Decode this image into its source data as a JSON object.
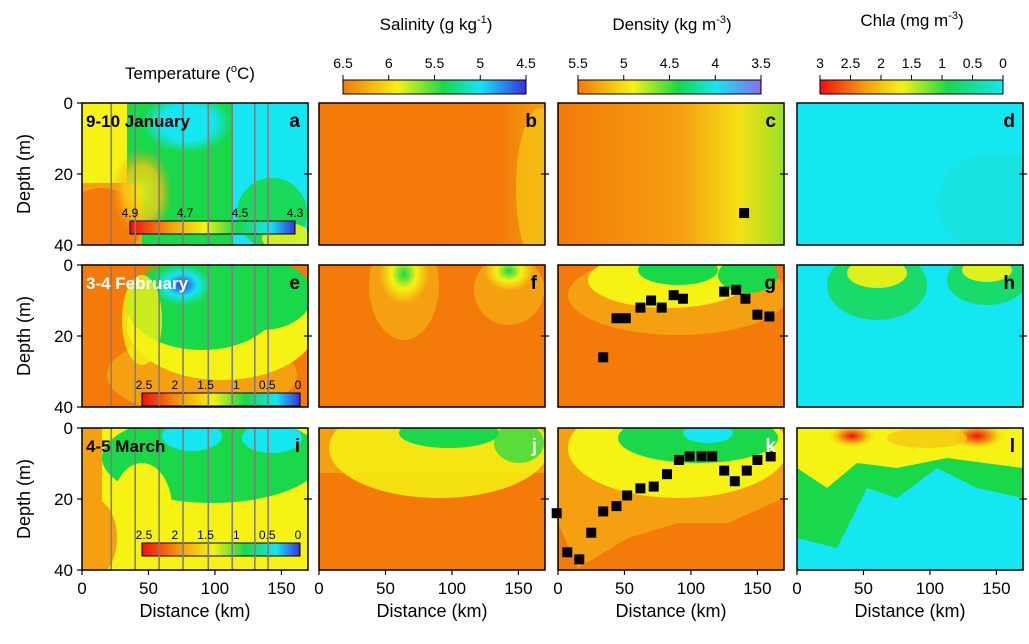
{
  "figure": {
    "columns": [
      {
        "title": "Temperature (",
        "sup": "o",
        "title_end": "C)"
      },
      {
        "title": "Salinity (g kg",
        "sup": "-1",
        "title_end": ")"
      },
      {
        "title": "Density (kg m",
        "sup": "-3",
        "title_end": ")"
      },
      {
        "title": "Chl",
        "italic": "a",
        "title_end": " (mg m",
        "sup": "-3",
        "title_end2": ")"
      }
    ],
    "ylabel": "Depth (m)",
    "xlabel": "Distance (km)",
    "xticks": [
      "0",
      "50",
      "100",
      "150"
    ],
    "yticks": [
      "0",
      "20",
      "40"
    ],
    "colorbars": {
      "temperature_jan": [
        "4.9",
        "4.7",
        "4.5",
        "4.3"
      ],
      "temperature_febmar": [
        "2.5",
        "2",
        "1.5",
        "1",
        "0.5",
        "0"
      ],
      "salinity": [
        "6.5",
        "6",
        "5.5",
        "5",
        "4.5"
      ],
      "density": [
        "5.5",
        "5",
        "4.5",
        "4",
        "3.5"
      ],
      "chl": [
        "3",
        "2.5",
        "2",
        "1.5",
        "1",
        "0.5",
        "0"
      ]
    },
    "rows": [
      {
        "date": "9-10 January",
        "letters": [
          "a",
          "b",
          "c",
          "d"
        ]
      },
      {
        "date": "3-4 February",
        "letters": [
          "e",
          "f",
          "g",
          "h"
        ]
      },
      {
        "date": "4-5 March",
        "letters": [
          "i",
          "j",
          "k",
          "l"
        ]
      }
    ],
    "colors": {
      "orange": "#f47a0a",
      "yellow": "#f5f214",
      "green": "#19d84a",
      "cyan": "#14e6f2",
      "blue": "#3a2fe0",
      "red": "#f20f0f"
    }
  },
  "chart_data": {
    "type": "heatmap",
    "xlabel": "Distance (km)",
    "ylabel": "Depth (m)",
    "xlim": [
      0,
      170
    ],
    "ylim": [
      40,
      0
    ],
    "station_lines_km": [
      22,
      40,
      58,
      76,
      95,
      113,
      130,
      140
    ],
    "mixed_layer_depth_m": {
      "jan": [
        {
          "x": 140,
          "y": 31
        }
      ],
      "feb": [
        {
          "x": 34,
          "y": 26
        },
        {
          "x": 44,
          "y": 15
        },
        {
          "x": 51,
          "y": 15
        },
        {
          "x": 62,
          "y": 12
        },
        {
          "x": 70,
          "y": 10
        },
        {
          "x": 78,
          "y": 12
        },
        {
          "x": 87,
          "y": 8.5
        },
        {
          "x": 94,
          "y": 9.5
        },
        {
          "x": 125,
          "y": 7.5
        },
        {
          "x": 134,
          "y": 7
        },
        {
          "x": 141,
          "y": 9.5
        },
        {
          "x": 150,
          "y": 14
        },
        {
          "x": 159,
          "y": 14.5
        }
      ],
      "mar": [
        {
          "x": -1,
          "y": 24
        },
        {
          "x": 7,
          "y": 35
        },
        {
          "x": 16,
          "y": 37
        },
        {
          "x": 25,
          "y": 29.5
        },
        {
          "x": 34,
          "y": 23.5
        },
        {
          "x": 44,
          "y": 22
        },
        {
          "x": 52,
          "y": 19
        },
        {
          "x": 62,
          "y": 17
        },
        {
          "x": 72,
          "y": 16.5
        },
        {
          "x": 82,
          "y": 13
        },
        {
          "x": 91,
          "y": 9
        },
        {
          "x": 99,
          "y": 8
        },
        {
          "x": 108,
          "y": 8
        },
        {
          "x": 116,
          "y": 8
        },
        {
          "x": 125,
          "y": 12
        },
        {
          "x": 133,
          "y": 15
        },
        {
          "x": 142,
          "y": 12
        },
        {
          "x": 150,
          "y": 9
        },
        {
          "x": 160,
          "y": 8
        }
      ]
    }
  }
}
